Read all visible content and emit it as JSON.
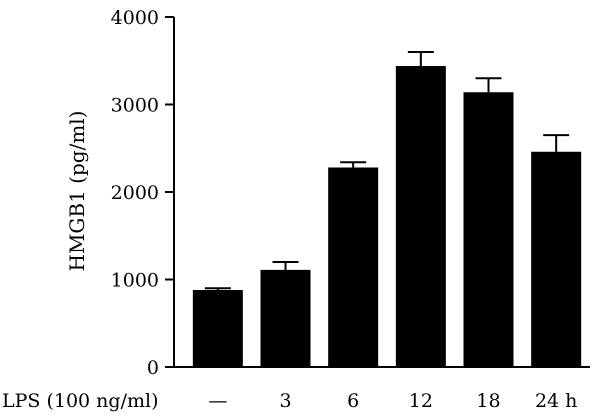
{
  "chart_data": {
    "type": "bar",
    "title": "",
    "ylabel": "HMGB1 (pg/ml)",
    "xlabel": "",
    "row_label": "LPS (100 ng/ml)",
    "categories": [
      "—",
      "3",
      "6",
      "12",
      "18",
      "24 h"
    ],
    "values": [
      880,
      1110,
      2280,
      3440,
      3140,
      2460
    ],
    "errors": [
      20,
      90,
      60,
      160,
      160,
      190
    ],
    "ylim": [
      0,
      4000
    ],
    "yticks": [
      "0",
      "1000",
      "2000",
      "3000",
      "4000"
    ],
    "ytick_values": [
      0,
      1000,
      2000,
      3000,
      4000
    ],
    "grid": false,
    "legend": "none",
    "bar_color": "#000000"
  }
}
